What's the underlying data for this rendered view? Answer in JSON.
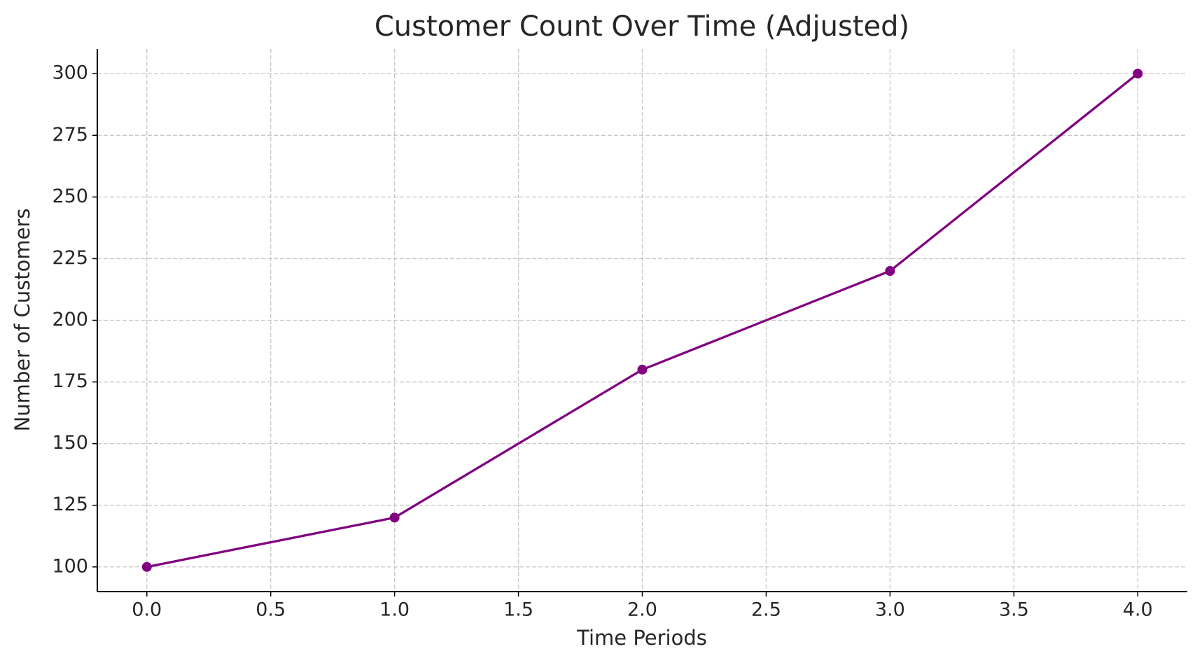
{
  "chart_data": {
    "type": "line",
    "title": "Customer Count Over Time (Adjusted)",
    "x_label": "Time Periods",
    "y_label": "Number of Customers",
    "x": [
      0,
      1,
      2,
      3,
      4
    ],
    "series": [
      {
        "color": "#800080",
        "values": [
          100,
          120,
          180,
          220,
          300
        ]
      }
    ],
    "xlim": [
      -0.2,
      4.2
    ],
    "xticks": [
      {
        "value": 0,
        "label": "0.0"
      },
      {
        "value": 0.5,
        "label": "0.5"
      },
      {
        "value": 1,
        "label": "1.0"
      },
      {
        "value": 1.5,
        "label": "1.5"
      },
      {
        "value": 2,
        "label": "2.0"
      },
      {
        "value": 2.5,
        "label": "2.5"
      },
      {
        "value": 3,
        "label": "3.0"
      },
      {
        "value": 3.5,
        "label": "3.5"
      },
      {
        "value": 4,
        "label": "4.0"
      }
    ],
    "ylim": [
      90,
      310
    ],
    "yticks": [
      100,
      125,
      150,
      175,
      200,
      225,
      250,
      275,
      300
    ],
    "grid": true
  }
}
